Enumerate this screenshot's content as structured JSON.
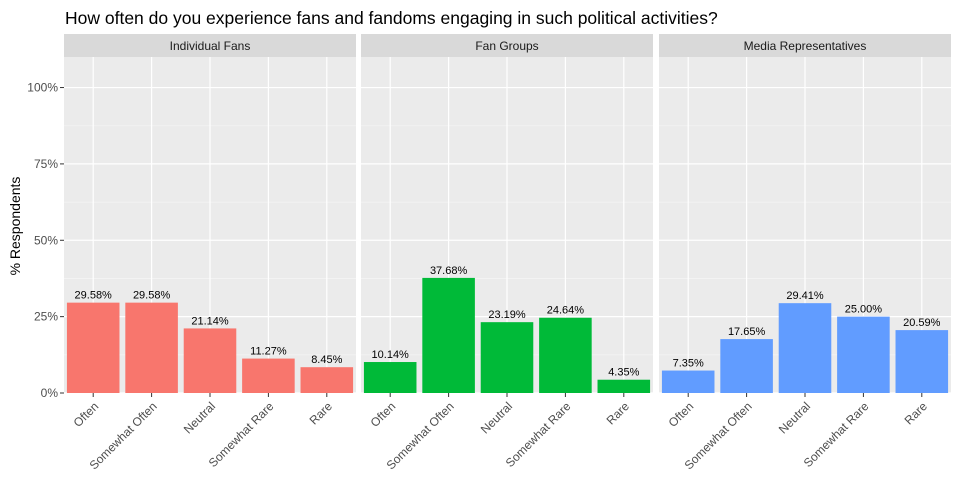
{
  "chart_data": {
    "type": "bar",
    "title": "How often do you experience fans and fandoms engaging in such political activities?",
    "ylabel": "% Respondents",
    "xlabel": "",
    "ylim": [
      0,
      1.1
    ],
    "y_ticks": [
      "0%",
      "25%",
      "50%",
      "75%",
      "100%"
    ],
    "y_tick_values": [
      0,
      0.25,
      0.5,
      0.75,
      1.0
    ],
    "categories": [
      "Often",
      "Somewhat Often",
      "Neutral",
      "Somewhat Rare",
      "Rare"
    ],
    "grid": true,
    "legend": "none",
    "facets": [
      {
        "name": "Individual Fans",
        "color": "#F8766D",
        "values": [
          0.2958,
          0.2958,
          0.2114,
          0.1127,
          0.0845
        ],
        "labels": [
          "29.58%",
          "29.58%",
          "21.14%",
          "11.27%",
          "8.45%"
        ]
      },
      {
        "name": "Fan Groups",
        "color": "#00BA38",
        "values": [
          0.1014,
          0.3768,
          0.2319,
          0.2464,
          0.0435
        ],
        "labels": [
          "10.14%",
          "37.68%",
          "23.19%",
          "24.64%",
          "4.35%"
        ]
      },
      {
        "name": "Media Representatives",
        "color": "#619CFF",
        "values": [
          0.0735,
          0.1765,
          0.2941,
          0.25,
          0.2059
        ],
        "labels": [
          "7.35%",
          "17.65%",
          "29.41%",
          "25.00%",
          "20.59%"
        ]
      }
    ]
  }
}
